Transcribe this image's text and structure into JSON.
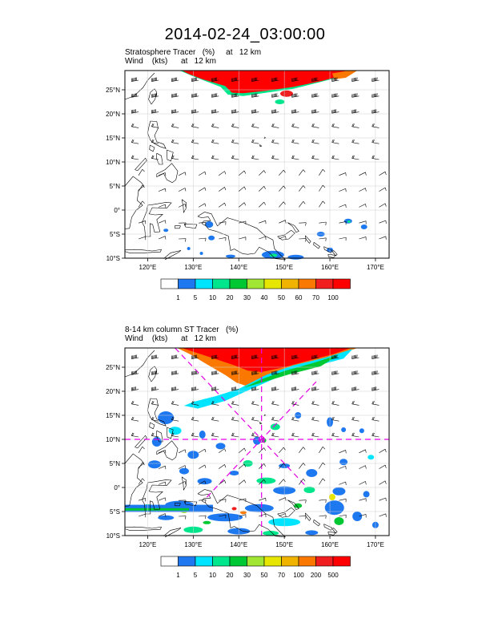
{
  "title": "2014-02-24_03:00:00",
  "panels": [
    {
      "line1": "Stratosphere Tracer   (%)     at   12 km",
      "line2": "Wind    (kts)      at   12 km",
      "colorbar_labels": [
        "1",
        "5",
        "10",
        "20",
        "30",
        "40",
        "50",
        "60",
        "70",
        "100"
      ]
    },
    {
      "line1": "8-14 km column ST Tracer   (%)",
      "line2": "Wind    (kts)      at   12 km",
      "colorbar_labels": [
        "1",
        "5",
        "10",
        "20",
        "30",
        "50",
        "70",
        "100",
        "200",
        "500"
      ]
    }
  ],
  "map": {
    "lat_labels": [
      "25°N",
      "20°N",
      "15°N",
      "10°N",
      "5°N",
      "0°",
      "5°S",
      "10°S"
    ],
    "lon_labels": [
      "120°E",
      "130°E",
      "140°E",
      "150°E",
      "160°E",
      "170°E"
    ]
  },
  "colors": {
    "scale": [
      "#ffffff",
      "#1e78f0",
      "#00e5ff",
      "#00e68c",
      "#00c832",
      "#a0e632",
      "#e6e600",
      "#f0b400",
      "#fa7800",
      "#f01e1e",
      "#ff0000"
    ],
    "crosshair": "#e600e6"
  }
}
